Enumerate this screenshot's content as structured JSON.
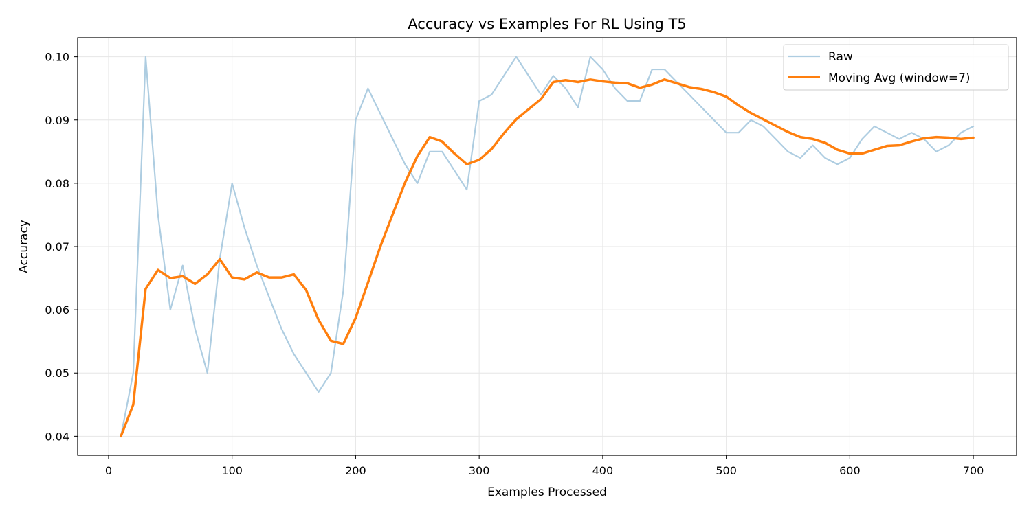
{
  "chart_data": {
    "type": "line",
    "title": "Accuracy vs Examples For RL Using T5",
    "xlabel": "Examples Processed",
    "ylabel": "Accuracy",
    "xlim": [
      -25,
      735
    ],
    "ylim": [
      0.037,
      0.103
    ],
    "xticks": [
      0,
      100,
      200,
      300,
      400,
      500,
      600,
      700
    ],
    "yticks": [
      0.04,
      0.05,
      0.06,
      0.07,
      0.08,
      0.09,
      0.1
    ],
    "xtick_labels": [
      "0",
      "100",
      "200",
      "300",
      "400",
      "500",
      "600",
      "700"
    ],
    "ytick_labels": [
      "0.04",
      "0.05",
      "0.06",
      "0.07",
      "0.08",
      "0.09",
      "0.10"
    ],
    "grid": true,
    "legend_position": "top-right",
    "x": [
      10,
      20,
      30,
      40,
      50,
      60,
      70,
      80,
      90,
      100,
      110,
      120,
      130,
      140,
      150,
      160,
      170,
      180,
      190,
      200,
      210,
      220,
      230,
      240,
      250,
      260,
      270,
      280,
      290,
      300,
      310,
      320,
      330,
      340,
      350,
      360,
      370,
      380,
      390,
      400,
      410,
      420,
      430,
      440,
      450,
      460,
      470,
      480,
      490,
      500,
      510,
      520,
      530,
      540,
      550,
      560,
      570,
      580,
      590,
      600,
      610,
      620,
      630,
      640,
      650,
      660,
      670,
      680,
      690,
      700
    ],
    "series": [
      {
        "name": "Raw",
        "color": "#aecde1",
        "values": [
          0.04,
          0.05,
          0.1,
          0.075,
          0.06,
          0.067,
          0.057,
          0.05,
          0.068,
          0.08,
          0.073,
          0.067,
          0.062,
          0.057,
          0.053,
          0.05,
          0.047,
          0.05,
          0.063,
          0.09,
          0.095,
          0.091,
          0.087,
          0.083,
          0.08,
          0.085,
          0.085,
          0.082,
          0.079,
          0.093,
          0.094,
          0.097,
          0.1,
          0.097,
          0.094,
          0.097,
          0.095,
          0.092,
          0.1,
          0.098,
          0.095,
          0.093,
          0.093,
          0.098,
          0.098,
          0.096,
          0.094,
          0.092,
          0.09,
          0.088,
          0.088,
          0.09,
          0.089,
          0.087,
          0.085,
          0.084,
          0.086,
          0.084,
          0.083,
          0.084,
          0.087,
          0.089,
          0.088,
          0.087,
          0.088,
          0.087,
          0.085,
          0.086,
          0.088,
          0.089
        ]
      },
      {
        "name": "Moving Avg (window=7)",
        "color": "#ff7f0e",
        "values": [
          0.04,
          0.045,
          0.0633,
          0.0663,
          0.065,
          0.0653,
          0.0641,
          0.0656,
          0.068,
          0.0651,
          0.0648,
          0.0659,
          0.0651,
          0.0651,
          0.0656,
          0.0631,
          0.0584,
          0.0551,
          0.0546,
          0.0587,
          0.0643,
          0.07,
          0.0751,
          0.0801,
          0.0843,
          0.0873,
          0.0866,
          0.0847,
          0.083,
          0.0837,
          0.0854,
          0.0879,
          0.0901,
          0.0917,
          0.0933,
          0.096,
          0.0963,
          0.096,
          0.0964,
          0.0961,
          0.0959,
          0.0958,
          0.0951,
          0.0956,
          0.0964,
          0.0958,
          0.0952,
          0.0949,
          0.0944,
          0.0937,
          0.0923,
          0.0911,
          0.0901,
          0.0891,
          0.0881,
          0.0873,
          0.087,
          0.0864,
          0.0853,
          0.0847,
          0.0847,
          0.0853,
          0.0859,
          0.086,
          0.0866,
          0.0871,
          0.0873,
          0.0872,
          0.087,
          0.0872
        ]
      }
    ]
  }
}
